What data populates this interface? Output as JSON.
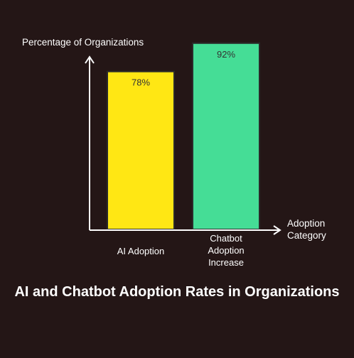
{
  "chart_data": {
    "type": "bar",
    "title": "AI and Chatbot Adoption Rates in Organizations",
    "ylabel": "Percentage of Organizations",
    "xlabel": "Adoption Category",
    "categories": [
      [
        "AI Adoption"
      ],
      [
        "Chatbot",
        "Adoption",
        "Increase"
      ]
    ],
    "values": [
      78,
      92
    ],
    "value_labels": [
      "78%",
      "92%"
    ],
    "colors": [
      "#FFE714",
      "#45DD96"
    ],
    "ylim": [
      0,
      100
    ],
    "grid": false,
    "legend": "none"
  }
}
